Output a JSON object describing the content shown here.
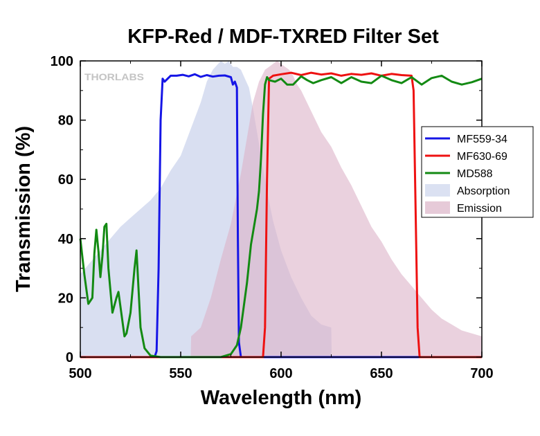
{
  "chart_data": {
    "type": "line",
    "title": "KFP-Red / MDF-TXRED Filter Set",
    "xlabel": "Wavelength (nm)",
    "ylabel": "Transmission (%)",
    "xlim": [
      500,
      700
    ],
    "ylim": [
      0,
      100
    ],
    "xticks": [
      500,
      550,
      600,
      650,
      700
    ],
    "yticks": [
      0,
      20,
      40,
      60,
      80,
      100
    ],
    "watermark": "THORLABS",
    "legend_position": "right",
    "series": [
      {
        "name": "MF559-34",
        "color": "#1515e6",
        "kind": "line",
        "x": [
          500,
          537,
          538,
          539,
          540,
          541,
          542,
          545,
          548,
          551,
          554,
          557,
          560,
          563,
          566,
          569,
          572,
          575,
          576,
          577,
          578,
          578.5,
          579,
          580,
          700
        ],
        "y": [
          0,
          0,
          2,
          30,
          80,
          94,
          93,
          95,
          95,
          95.3,
          94.8,
          95.5,
          94.6,
          95.2,
          94.7,
          95,
          95.1,
          94.5,
          92,
          93,
          91,
          40,
          5,
          0,
          0
        ]
      },
      {
        "name": "MF630-69",
        "color": "#ee1111",
        "kind": "line",
        "x": [
          500,
          591,
          592,
          593,
          594,
          596,
          600,
          605,
          610,
          615,
          620,
          625,
          630,
          635,
          640,
          645,
          650,
          655,
          660,
          665,
          666,
          667,
          668,
          669,
          700
        ],
        "y": [
          0,
          0,
          10,
          60,
          94,
          95,
          95.5,
          96,
          95.2,
          96,
          95.4,
          95.8,
          95,
          95.6,
          95.3,
          95.8,
          95,
          95.6,
          95.2,
          95,
          90,
          50,
          10,
          0,
          0
        ]
      },
      {
        "name": "MD588",
        "color": "#138a13",
        "kind": "line",
        "x": [
          500,
          502,
          504,
          506,
          507,
          508,
          509,
          510,
          511,
          512,
          513,
          514,
          516,
          518,
          519,
          521,
          522,
          523,
          525,
          527,
          528,
          530,
          532,
          535,
          540,
          560,
          570,
          575,
          578,
          580,
          583,
          585,
          587,
          588,
          589,
          590,
          591,
          592,
          593,
          594,
          597,
          600,
          603,
          606,
          610,
          613,
          616,
          620,
          625,
          630,
          635,
          640,
          645,
          650,
          655,
          660,
          665,
          670,
          675,
          680,
          685,
          690,
          695,
          700
        ],
        "y": [
          40,
          28,
          18,
          20,
          35,
          43,
          36,
          27,
          34,
          44,
          45,
          30,
          15,
          20,
          22,
          12,
          7,
          8,
          15,
          30,
          36,
          10,
          3,
          0.5,
          0,
          0,
          0,
          1,
          4,
          10,
          25,
          38,
          46,
          50,
          56,
          67,
          82,
          92,
          94.5,
          93.5,
          93,
          94,
          92,
          92,
          94.8,
          93.5,
          92.5,
          93.5,
          94.5,
          92.5,
          94.5,
          93,
          92.5,
          95,
          93.5,
          92.5,
          94.5,
          92,
          94.2,
          95,
          93,
          92,
          92.8,
          94
        ]
      },
      {
        "name": "Absorption",
        "color": "#ccd4ec",
        "kind": "area",
        "x": [
          500,
          505,
          510,
          515,
          520,
          525,
          530,
          535,
          540,
          545,
          550,
          555,
          560,
          563,
          566,
          570,
          572,
          574,
          576,
          578,
          580,
          582,
          584,
          586,
          588,
          590,
          593,
          596,
          600,
          605,
          610,
          615,
          620,
          625,
          625.2,
          700
        ],
        "y": [
          28,
          32,
          36,
          40,
          44,
          47,
          50,
          53,
          57,
          63,
          68,
          77,
          86,
          93,
          97,
          100,
          99,
          100,
          98,
          98,
          97,
          94,
          91,
          84,
          76,
          68,
          56,
          46,
          36,
          27,
          20,
          14,
          11,
          10,
          0,
          0
        ]
      },
      {
        "name": "Emission",
        "color": "#dcb3c8",
        "kind": "area",
        "x": [
          500,
          555,
          555.2,
          560,
          565,
          570,
          575,
          580,
          583,
          586,
          589,
          592,
          594,
          596,
          598,
          600,
          602,
          604,
          606,
          608,
          610,
          615,
          620,
          625,
          630,
          635,
          640,
          645,
          650,
          655,
          660,
          665,
          670,
          675,
          680,
          685,
          690,
          695,
          700
        ],
        "y": [
          0,
          0,
          7,
          10,
          20,
          33,
          45,
          62,
          74,
          86,
          93,
          97,
          98,
          99,
          100,
          99,
          98,
          97,
          95,
          92,
          90,
          83,
          76,
          71,
          64,
          58,
          51,
          44,
          39,
          33,
          28,
          24,
          20,
          16,
          13,
          11,
          9,
          8,
          7
        ]
      }
    ]
  }
}
